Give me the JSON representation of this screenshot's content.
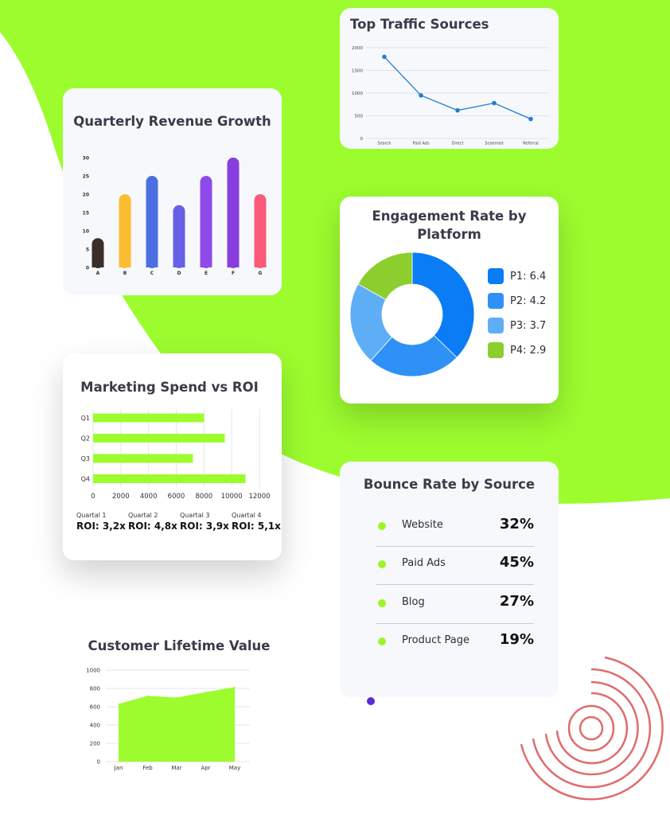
{
  "colors": {
    "brand_green": "#9cfc2e",
    "accent_red": "#e06c6c",
    "accent_purple": "#5b2bd6"
  },
  "quarterly_revenue": {
    "title": "Quarterly Revenue Growth",
    "chart_data": {
      "type": "bar",
      "categories": [
        "A",
        "B",
        "C",
        "D",
        "E",
        "F",
        "G"
      ],
      "values": [
        8,
        20,
        25,
        17,
        25,
        30,
        20
      ],
      "colors": [
        "#3a2e28",
        "#fbbd32",
        "#4b6fe0",
        "#6761e5",
        "#8f49ea",
        "#8a3ddf",
        "#fb5a78"
      ],
      "yticks": [
        0,
        5,
        10,
        15,
        20,
        25,
        30
      ],
      "ylim": [
        0,
        30
      ]
    }
  },
  "traffic_sources": {
    "title": "Top Traffic Sources",
    "chart_data": {
      "type": "line",
      "categories": [
        "Search",
        "Paid Ads",
        "Direct",
        "Scoemed",
        "Referral"
      ],
      "values": [
        1800,
        950,
        620,
        780,
        430
      ],
      "color": "#1f7fd1",
      "yticks": [
        0,
        500,
        1000,
        1500,
        2000
      ],
      "ylim": [
        0,
        2000
      ]
    }
  },
  "engagement": {
    "title": "Engagement Rate by Platform",
    "chart_data": {
      "type": "pie",
      "labels": [
        "P1: 6.4",
        "P2: 4.2",
        "P3: 3.7",
        "P4: 2.9"
      ],
      "values": [
        6.4,
        4.2,
        3.7,
        2.9
      ],
      "colors": [
        "#0a7cf5",
        "#2f91f6",
        "#5eaef7",
        "#8cce2e"
      ]
    }
  },
  "spend_roi": {
    "title": "Marketing Spend vs ROI",
    "chart_data": {
      "type": "bar",
      "orientation": "horizontal",
      "categories": [
        "Q1",
        "Q2",
        "Q3",
        "Q4"
      ],
      "values": [
        8000,
        9500,
        7200,
        11000
      ],
      "color": "#9cfc2e",
      "xticks": [
        0,
        2000,
        4000,
        6000,
        8000,
        10000,
        12000
      ],
      "xlim": [
        0,
        12000
      ]
    },
    "roi": [
      {
        "quarter": "Quartal 1",
        "value": "ROI: 3,2x"
      },
      {
        "quarter": "Quartal 2",
        "value": "ROI: 4,8x"
      },
      {
        "quarter": "Quartal 3",
        "value": "ROI: 3,9x"
      },
      {
        "quarter": "Quartal 4",
        "value": "ROI: 5,1x"
      }
    ]
  },
  "bounce_rate": {
    "title": "Bounce Rate by Source",
    "rows": [
      {
        "label": "Website",
        "value": "32%"
      },
      {
        "label": "Paid Ads",
        "value": "45%"
      },
      {
        "label": "Blog",
        "value": "27%"
      },
      {
        "label": "Product Page",
        "value": "19%"
      }
    ]
  },
  "clv": {
    "title": "Customer Lifetime Value",
    "chart_data": {
      "type": "area",
      "categories": [
        "Jan",
        "Feb",
        "Mar",
        "Apr",
        "May"
      ],
      "values": [
        630,
        720,
        700,
        760,
        815
      ],
      "color": "#9cfc2e",
      "yticks": [
        0,
        200,
        400,
        600,
        800,
        1000
      ],
      "ylim": [
        0,
        1000
      ]
    }
  }
}
